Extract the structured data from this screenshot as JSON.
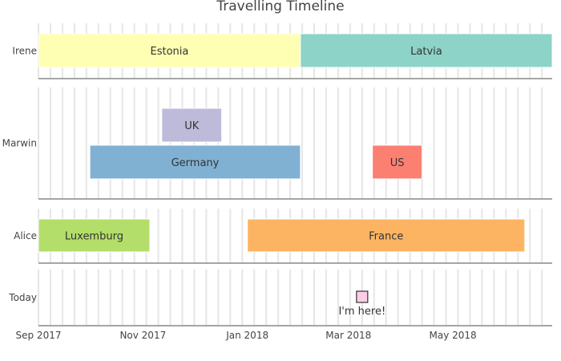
{
  "chart_data": {
    "type": "timeline",
    "title": "Travelling Timeline",
    "x_axis": {
      "ticks": [
        "Sep 2017",
        "Nov 2017",
        "Jan 2018",
        "Mar 2018",
        "May 2018"
      ],
      "tick_dates": [
        "2017-09-01",
        "2017-11-01",
        "2018-01-01",
        "2018-03-01",
        "2018-05-01"
      ],
      "range": [
        "2017-09-01",
        "2018-06-28"
      ],
      "grid": "weekly"
    },
    "rows": [
      {
        "label": "Irene",
        "bars": [
          {
            "name": "Estonia",
            "start": "2017-09-01",
            "end": "2018-02-01",
            "color": "#ffffb3"
          },
          {
            "name": "Latvia",
            "start": "2018-02-01",
            "end": "2018-06-28",
            "color": "#8dd3c7"
          }
        ]
      },
      {
        "label": "Marwin",
        "bars": [
          {
            "name": "UK",
            "start": "2017-11-12",
            "end": "2017-12-17",
            "color": "#bebada",
            "lane": 0
          },
          {
            "name": "Germany",
            "start": "2017-10-01",
            "end": "2018-02-01",
            "color": "#80b1d3",
            "lane": 1
          },
          {
            "name": "US",
            "start": "2018-03-15",
            "end": "2018-04-13",
            "color": "#fb8072",
            "lane": 1
          }
        ]
      },
      {
        "label": "Alice",
        "bars": [
          {
            "name": "Luxemburg",
            "start": "2017-09-01",
            "end": "2017-11-05",
            "color": "#b3de69"
          },
          {
            "name": "France",
            "start": "2018-01-01",
            "end": "2018-06-12",
            "color": "#fdb462"
          }
        ]
      },
      {
        "label": "Today",
        "marker": {
          "date": "2018-03-09",
          "label": "I'm here!",
          "color": "#fccde5"
        }
      }
    ]
  }
}
